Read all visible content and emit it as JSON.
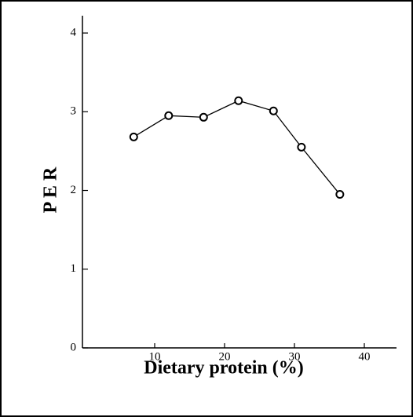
{
  "chart_data": {
    "type": "line",
    "x_label": "Dietary protein (%)",
    "y_label": "P E R",
    "x": [
      7,
      12,
      17,
      22,
      27,
      31,
      36.5
    ],
    "series": [
      {
        "color": "#000000",
        "values": [
          2.68,
          2.95,
          2.93,
          3.14,
          3.01,
          2.55,
          1.95
        ]
      }
    ],
    "xlim": [
      0,
      45
    ],
    "xticks": [
      10,
      20,
      30,
      40
    ],
    "ylim": [
      0,
      4.2
    ],
    "yticks": [
      0,
      1,
      2,
      3,
      4
    ],
    "grid": false
  }
}
